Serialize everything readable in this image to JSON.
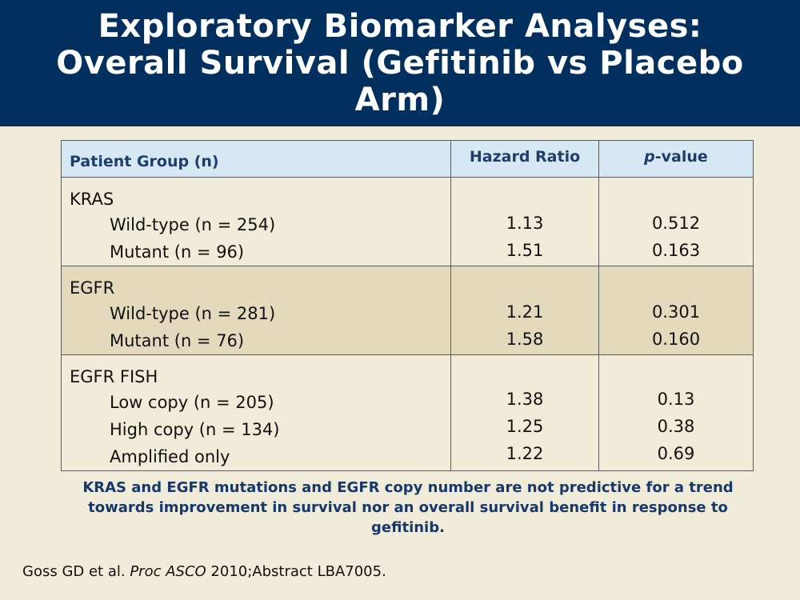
{
  "title": "Exploratory Biomarker Analyses: Overall Survival (Gefitinib vs Placebo Arm)",
  "table": {
    "headers": {
      "group": "Patient Group (n)",
      "hazard_ratio": "Hazard Ratio",
      "p_italic": "p",
      "p_rest": "-value"
    },
    "groups": [
      {
        "name": "KRAS",
        "rows": [
          {
            "label": "Wild-type (n = 254)",
            "hr": "1.13",
            "p": "0.512"
          },
          {
            "label": "Mutant (n = 96)",
            "hr": "1.51",
            "p": "0.163"
          }
        ]
      },
      {
        "name": "EGFR",
        "rows": [
          {
            "label": "Wild-type (n = 281)",
            "hr": "1.21",
            "p": "0.301"
          },
          {
            "label": "Mutant (n = 76)",
            "hr": "1.58",
            "p": "0.160"
          }
        ]
      },
      {
        "name": "EGFR FISH",
        "rows": [
          {
            "label": "Low copy (n = 205)",
            "hr": "1.38",
            "p": "0.13"
          },
          {
            "label": "High copy (n = 134)",
            "hr": "1.25",
            "p": "0.38"
          },
          {
            "label": "Amplified only",
            "hr": "1.22",
            "p": "0.69"
          }
        ]
      }
    ]
  },
  "conclusion": "KRAS and EGFR mutations and EGFR copy number are not predictive for a trend towards improvement in survival nor an overall survival benefit in response to gefitinib.",
  "citation": {
    "authors": "Goss GD et al.",
    "journal": "Proc ASCO",
    "rest": "2010;Abstract LBA7005."
  },
  "colors": {
    "title_bg": "#02305e",
    "page_bg": "#f1ebd9",
    "header_bg": "#d6e8f4",
    "shaded_row_bg": "#e3dabd",
    "accent_text": "#16386a"
  }
}
